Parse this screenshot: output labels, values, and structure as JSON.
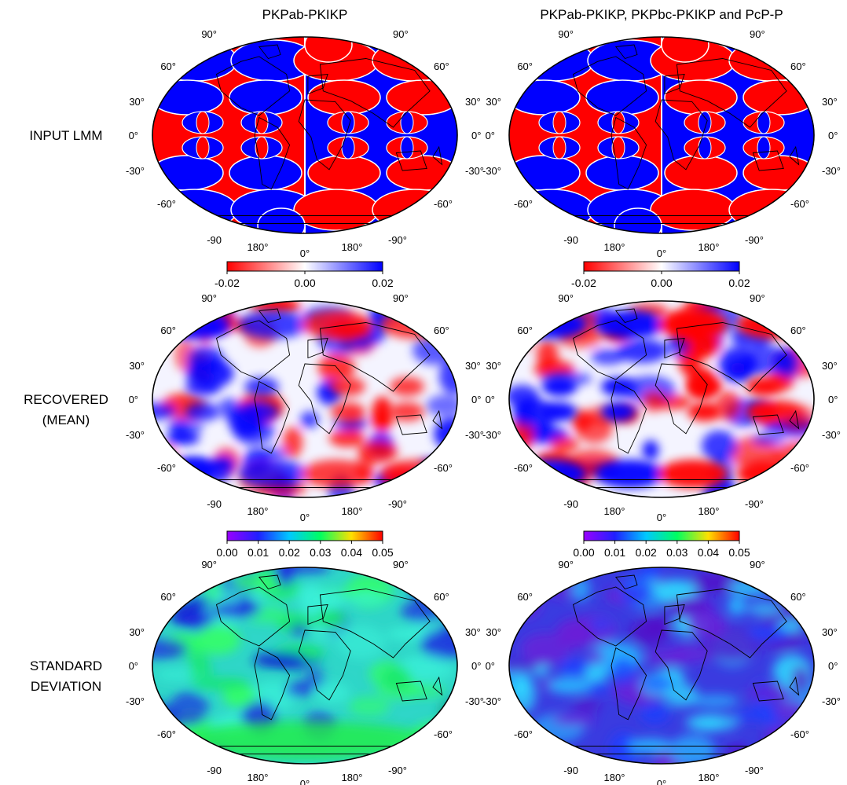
{
  "columns": [
    {
      "title": "PKPab-PKIKP"
    },
    {
      "title": "PKPab-PKIKP, PKPbc-PKIKP and PcP-P"
    }
  ],
  "rows": [
    {
      "label_lines": [
        "INPUT LMM"
      ],
      "style": "lmm"
    },
    {
      "label_lines": [
        "RECOVERED",
        "(MEAN)"
      ],
      "style": "recovered"
    },
    {
      "label_lines": [
        "STANDARD",
        "DEVIATION"
      ],
      "style": "stddev"
    }
  ],
  "map_ticks": {
    "lat_left": [
      "90°",
      "60°",
      "30°",
      "0°",
      "-30°",
      "-60°",
      "-90"
    ],
    "lat_right": [
      "90°",
      "60°",
      "30°",
      "0°",
      "-30°",
      "-60°",
      "-90°"
    ],
    "lon_bottom": [
      "180°",
      "0°",
      "180°"
    ]
  },
  "colorbars": [
    {
      "name": "velocity-perturbation",
      "ticks": [
        "-0.02",
        "0.00",
        "0.02"
      ],
      "stops": [
        "#ff0000",
        "#ffffff",
        "#0000ff"
      ]
    },
    {
      "name": "standard-deviation",
      "ticks": [
        "0.00",
        "0.01",
        "0.02",
        "0.03",
        "0.04",
        "0.05"
      ],
      "stops": [
        "#9a00ff",
        "#2020ff",
        "#00c8ff",
        "#00ff60",
        "#ffe000",
        "#ff0000"
      ]
    }
  ],
  "colors": {
    "red": "#ff0000",
    "blue": "#0000ff",
    "coast": "#000000"
  }
}
